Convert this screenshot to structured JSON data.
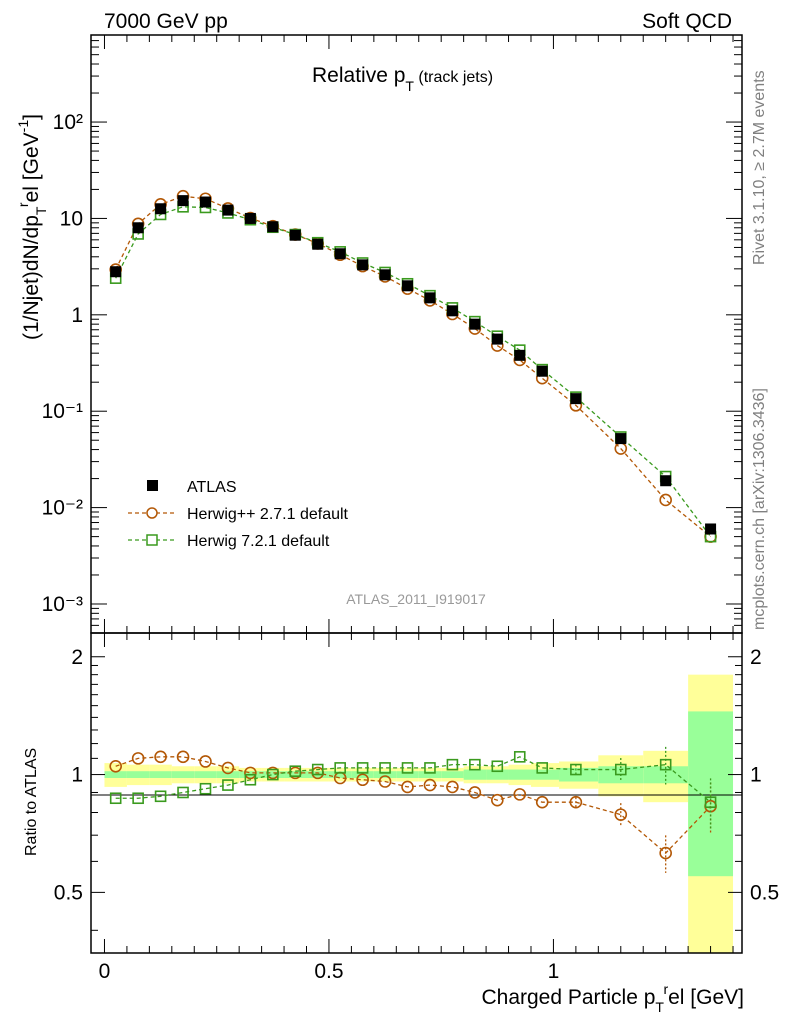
{
  "header": {
    "left": "7000 GeV pp",
    "right": "Soft QCD"
  },
  "side_labels": {
    "rivet": "Rivet 3.1.10, ≥ 2.7M events",
    "mcplots": "mcplots.cern.ch [arXiv:1306.3436]"
  },
  "main_plot": {
    "title_main": "Relative p",
    "title_sub": "T",
    "title_tail": " (track jets)",
    "ylabel": "(1/Njet)dN/dp",
    "ylabel_sub": "T",
    "ylabel_sup": "r",
    "ylabel_tail": "el [GeV",
    "ylabel_unit_sup": "-1",
    "ylabel_close": "]",
    "watermark": "ATLAS_2011_I919017",
    "y_ticks": [
      "10⁻³",
      "10⁻²",
      "10⁻¹",
      "1",
      "10",
      "10²"
    ]
  },
  "ratio_plot": {
    "ylabel": "Ratio to ATLAS",
    "y_ticks": [
      "0.5",
      "1",
      "2"
    ]
  },
  "x_axis": {
    "label": "Charged Particle p",
    "label_sub": "T",
    "label_sup": "r",
    "label_tail": "el [GeV]",
    "ticks": [
      "0",
      "0.5",
      "1"
    ]
  },
  "legend": {
    "atlas": "ATLAS",
    "herwigpp": "Herwig++ 2.7.1 default",
    "herwig7": "Herwig 7.2.1 default"
  },
  "colors": {
    "data": "#000000",
    "herwigpp": "#b35806",
    "herwig7": "#3a9a1e",
    "band_inner": "#99ff99",
    "band_outer": "#ffff99"
  },
  "chart_data": {
    "type": "scatter",
    "title": "Relative pT (track jets)",
    "xlabel": "Charged Particle pTrel [GeV]",
    "ylabel": "(1/Njet)dN/dpTrel [GeV-1]",
    "ylim": [
      0.0005,
      800
    ],
    "ylog": true,
    "xlim": [
      -0.03,
      1.42
    ],
    "ratio_ylim": [
      0.35,
      2.3
    ],
    "x": [
      0.025,
      0.075,
      0.125,
      0.175,
      0.225,
      0.275,
      0.325,
      0.375,
      0.425,
      0.475,
      0.525,
      0.575,
      0.625,
      0.675,
      0.725,
      0.775,
      0.825,
      0.875,
      0.925,
      0.975,
      1.05,
      1.15,
      1.25,
      1.35
    ],
    "series": [
      {
        "name": "ATLAS",
        "values": [
          2.8,
          8.0,
          12.6,
          15.3,
          14.8,
          12.2,
          10.0,
          8.2,
          6.7,
          5.4,
          4.3,
          3.3,
          2.6,
          2.0,
          1.5,
          1.1,
          0.8,
          0.56,
          0.38,
          0.26,
          0.135,
          0.052,
          0.019,
          0.006
        ],
        "band_inner": [
          0.02,
          0.02,
          0.02,
          0.02,
          0.02,
          0.02,
          0.02,
          0.02,
          0.02,
          0.02,
          0.02,
          0.02,
          0.02,
          0.02,
          0.02,
          0.02,
          0.03,
          0.03,
          0.03,
          0.03,
          0.04,
          0.05,
          0.05,
          0.45
        ],
        "band_outer": [
          0.07,
          0.06,
          0.06,
          0.05,
          0.05,
          0.05,
          0.04,
          0.04,
          0.04,
          0.04,
          0.04,
          0.04,
          0.04,
          0.04,
          0.04,
          0.04,
          0.05,
          0.05,
          0.06,
          0.07,
          0.08,
          0.12,
          0.15,
          0.8
        ]
      },
      {
        "name": "Herwig++ 2.7.1 default",
        "values": [
          2.95,
          8.8,
          14.0,
          17.0,
          16.0,
          12.7,
          10.1,
          8.3,
          6.8,
          5.5,
          4.2,
          3.2,
          2.5,
          1.87,
          1.41,
          1.02,
          0.72,
          0.48,
          0.34,
          0.22,
          0.115,
          0.041,
          0.012,
          0.005
        ],
        "ratios": [
          1.05,
          1.1,
          1.11,
          1.11,
          1.08,
          1.04,
          1.01,
          1.01,
          1.01,
          1.01,
          0.98,
          0.97,
          0.96,
          0.93,
          0.94,
          0.93,
          0.9,
          0.86,
          0.89,
          0.85,
          0.85,
          0.79,
          0.63,
          0.83
        ]
      },
      {
        "name": "Herwig 7.2.1 default",
        "values": [
          2.4,
          6.9,
          11.0,
          13.2,
          13.0,
          11.4,
          9.7,
          8.1,
          6.8,
          5.6,
          4.5,
          3.45,
          2.75,
          2.1,
          1.58,
          1.18,
          0.85,
          0.6,
          0.43,
          0.27,
          0.14,
          0.054,
          0.021,
          0.005
        ],
        "ratios": [
          0.87,
          0.87,
          0.88,
          0.9,
          0.92,
          0.94,
          0.97,
          1.0,
          1.02,
          1.03,
          1.04,
          1.04,
          1.04,
          1.04,
          1.04,
          1.06,
          1.06,
          1.05,
          1.11,
          1.04,
          1.03,
          1.03,
          1.06,
          0.85
        ]
      }
    ]
  }
}
